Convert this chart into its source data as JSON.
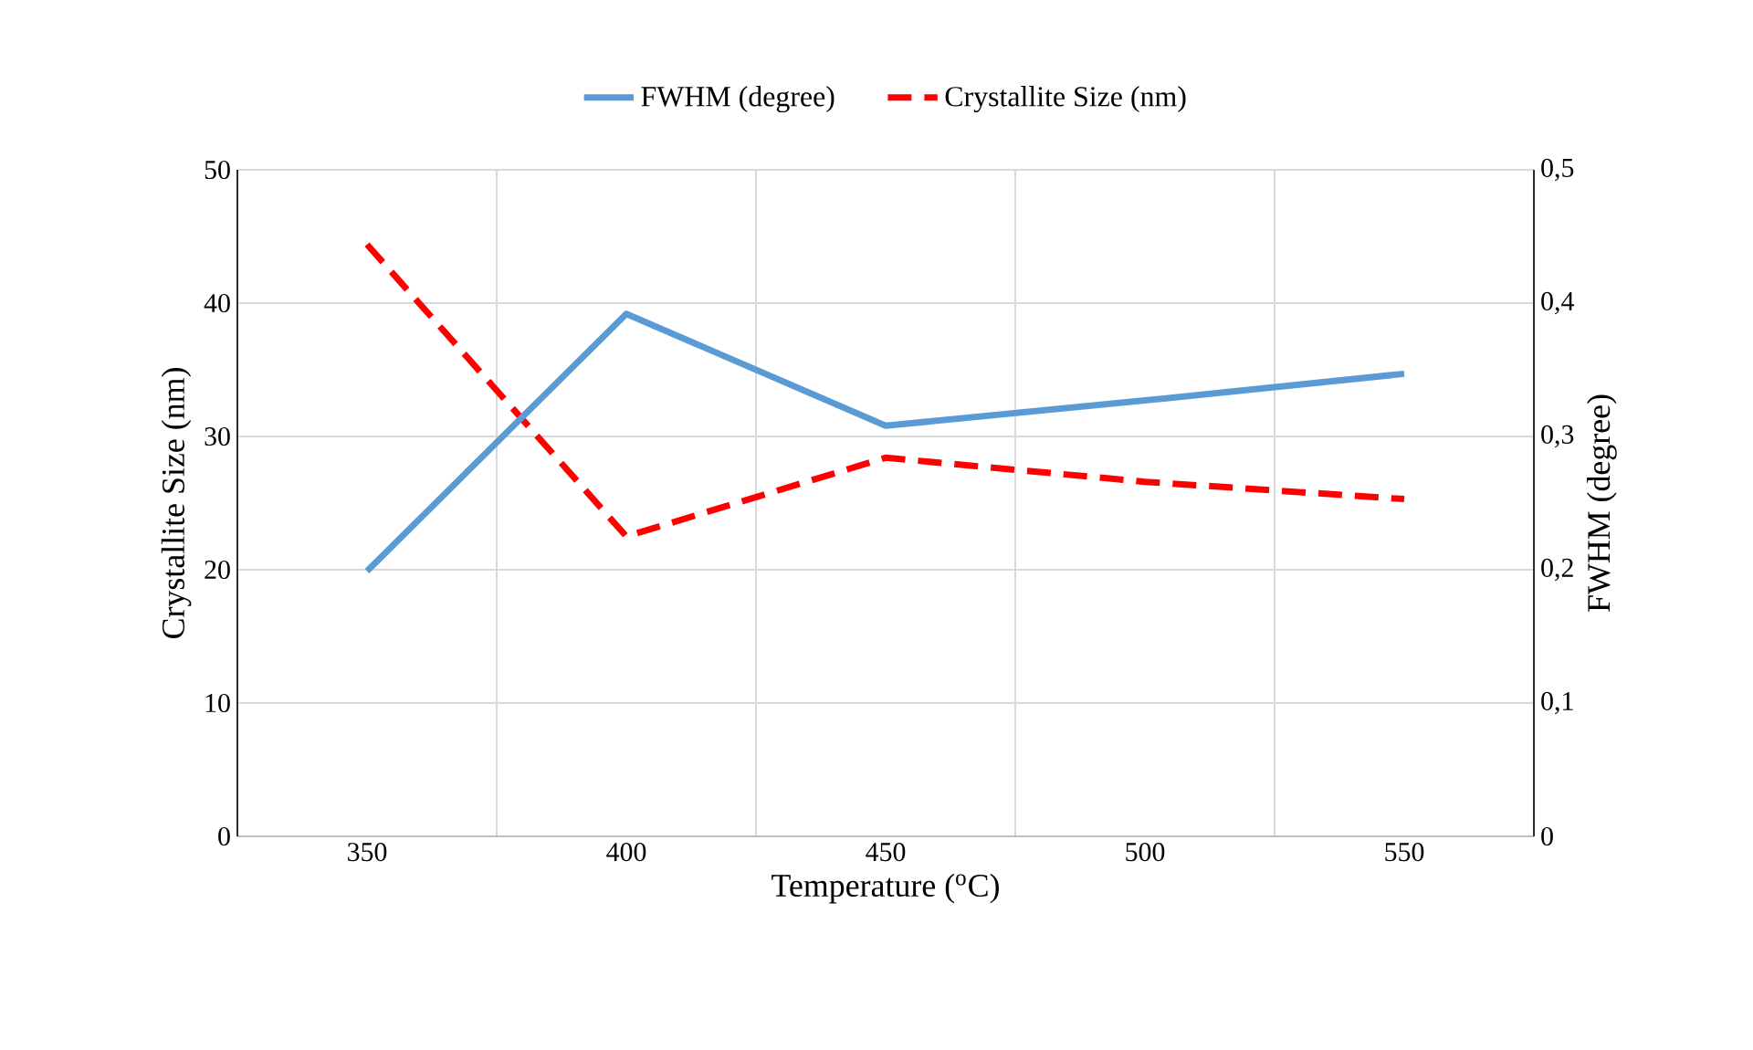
{
  "chart_data": {
    "type": "line",
    "xlabel": "Temperature ($^{o}$C)",
    "ylabel": "Crystallite Size (nm)",
    "y2label": "FWHM (degree)",
    "categories": [
      "350",
      "400",
      "450",
      "500",
      "550"
    ],
    "series": [
      {
        "name": "FWHM (degree)",
        "color": "#5b9bd5",
        "axis": "y2",
        "line_style": "solid",
        "values": [
          0.199,
          0.392,
          0.308,
          0.327,
          0.347
        ]
      },
      {
        "name": "Crystallite Size (nm)",
        "color": "#ff0000",
        "line_style": "dashed",
        "values": [
          44.4,
          22.5,
          28.4,
          26.6,
          25.3
        ]
      }
    ],
    "ylim": [
      0,
      50
    ],
    "yticks": [
      0,
      10,
      20,
      30,
      40,
      50
    ],
    "y2lim": [
      0,
      0.5
    ],
    "y2ticks": [
      0,
      {
        "value": 0.1,
        "label": "0,1"
      },
      {
        "value": 0.2,
        "label": "0,2"
      },
      {
        "value": 0.3,
        "label": "0,3"
      },
      {
        "value": 0.4,
        "label": "0,4"
      },
      {
        "value": 0.5,
        "label": "0,5"
      }
    ],
    "grid": true,
    "legend": "top",
    "marker": "none"
  }
}
